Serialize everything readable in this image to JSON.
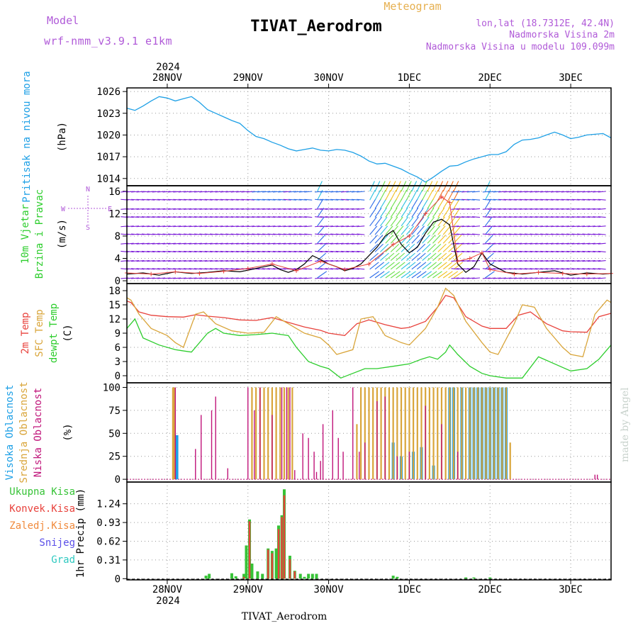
{
  "header": {
    "model_label": "Model",
    "model_name": "wrf-nmm_v3.9.1 e1km",
    "title": "TIVAT_Aerodrom",
    "subtitle": "Meteogram",
    "lonlat": "lon,lat (18.7312E, 42.4N)",
    "elevation": "Nadmorska Visina 2m",
    "model_elevation": "Nadmorska Visina u modelu 109.099m",
    "footer_title": "TIVAT_Aerodrom",
    "watermark": "made by Angel",
    "year": "2024"
  },
  "colors": {
    "pressure": "#1ea0e6",
    "temp2m": "#e8423c",
    "sfc_temp": "#d9a53a",
    "dewpt": "#2ccd2c",
    "high_cloud": "#1ea0e6",
    "mid_cloud": "#d9a53a",
    "low_cloud": "#c0157a",
    "precip_total": "#36c336",
    "precip_conv": "#e8423c",
    "frozen": "#f08a3c",
    "snow": "#5a4ee8",
    "hail": "#2ec9c0",
    "title_purple": "#b05ad8",
    "meteogram_orange": "#e6b050"
  },
  "x_axis": {
    "start_day": 27.5,
    "end_day": 33.5,
    "ticks": [
      28,
      29,
      30,
      31,
      32,
      33
    ],
    "tick_labels": [
      "28NOV",
      "29NOV",
      "30NOV",
      "1DEC",
      "2DEC",
      "3DEC"
    ]
  },
  "chart_data": [
    {
      "type": "line",
      "panel": "pressure",
      "ylabel": "Pritisak na nivou mora",
      "units": "(hPa)",
      "ylim": [
        1013,
        1026.5
      ],
      "yticks": [
        1014,
        1017,
        1020,
        1023,
        1026
      ],
      "grid": true,
      "series": [
        {
          "name": "pressure",
          "x": [
            27.5,
            27.6,
            27.7,
            27.8,
            27.9,
            28.0,
            28.1,
            28.2,
            28.3,
            28.4,
            28.5,
            28.6,
            28.7,
            28.8,
            28.9,
            29.0,
            29.1,
            29.2,
            29.3,
            29.4,
            29.5,
            29.6,
            29.7,
            29.8,
            29.9,
            30.0,
            30.1,
            30.2,
            30.3,
            30.4,
            30.5,
            30.6,
            30.7,
            30.8,
            30.9,
            31.0,
            31.1,
            31.2,
            31.3,
            31.4,
            31.5,
            31.6,
            31.7,
            31.8,
            31.9,
            32.0,
            32.1,
            32.2,
            32.3,
            32.4,
            32.5,
            32.6,
            32.7,
            32.8,
            32.9,
            33.0,
            33.1,
            33.2,
            33.3,
            33.4,
            33.5
          ],
          "values": [
            1023.7,
            1023.4,
            1024.0,
            1024.7,
            1025.3,
            1025.1,
            1024.7,
            1025.0,
            1025.3,
            1024.5,
            1023.5,
            1023.0,
            1022.5,
            1022.0,
            1021.6,
            1020.6,
            1019.8,
            1019.5,
            1019.0,
            1018.6,
            1018.1,
            1017.8,
            1018.0,
            1018.2,
            1017.9,
            1017.8,
            1018.0,
            1017.9,
            1017.6,
            1017.1,
            1016.4,
            1016.0,
            1016.1,
            1015.7,
            1015.3,
            1014.7,
            1014.2,
            1013.5,
            1014.2,
            1015.0,
            1015.7,
            1015.8,
            1016.3,
            1016.7,
            1017.0,
            1017.3,
            1017.3,
            1017.7,
            1018.7,
            1019.3,
            1019.4,
            1019.6,
            1020.0,
            1020.4,
            1020.0,
            1019.5,
            1019.7,
            1020.0,
            1020.1,
            1020.2,
            1019.6
          ]
        }
      ]
    },
    {
      "type": "line",
      "panel": "wind",
      "ylabel": "10m Vjetar",
      "ylabel2": "Brzina i Pravac",
      "units": "(m/s)",
      "ylim": [
        -0.5,
        17
      ],
      "yticks": [
        0,
        4,
        8,
        12,
        16
      ],
      "grid": true,
      "compass": [
        "N",
        "S",
        "W",
        "E"
      ],
      "series": [
        {
          "name": "wind_speed",
          "x": [
            27.5,
            27.7,
            27.9,
            28.1,
            28.3,
            28.5,
            28.7,
            28.9,
            29.0,
            29.1,
            29.2,
            29.3,
            29.4,
            29.5,
            29.6,
            29.7,
            29.8,
            29.9,
            30.0,
            30.1,
            30.2,
            30.3,
            30.4,
            30.5,
            30.6,
            30.7,
            30.8,
            30.9,
            31.0,
            31.1,
            31.2,
            31.3,
            31.4,
            31.5,
            31.6,
            31.7,
            31.8,
            31.9,
            32.0,
            32.2,
            32.4,
            32.6,
            32.8,
            33.0,
            33.2,
            33.4,
            33.5
          ],
          "values": [
            1.2,
            1.4,
            1.0,
            1.6,
            1.3,
            1.5,
            1.8,
            1.6,
            1.9,
            2.2,
            2.5,
            2.8,
            2.0,
            1.5,
            2.0,
            3.0,
            4.5,
            3.8,
            3.0,
            2.5,
            1.8,
            2.2,
            3.0,
            4.5,
            6.0,
            8.0,
            9.0,
            6.5,
            5.0,
            6.0,
            8.5,
            10.5,
            11.0,
            10.0,
            3.0,
            1.5,
            2.5,
            5.0,
            3.0,
            1.5,
            1.2,
            1.5,
            1.8,
            1.0,
            1.4,
            1.2,
            1.3
          ]
        },
        {
          "name": "gust",
          "x": [
            27.5,
            27.8,
            28.1,
            28.4,
            28.7,
            29.0,
            29.3,
            29.6,
            29.9,
            30.2,
            30.5,
            30.8,
            31.0,
            31.2,
            31.4,
            31.5,
            31.6,
            31.75,
            31.9,
            32.0,
            32.3,
            32.6,
            32.9,
            33.2,
            33.5
          ],
          "values": [
            1.4,
            1.2,
            1.6,
            1.3,
            1.7,
            2.2,
            3.0,
            1.8,
            3.5,
            2.0,
            3.0,
            6.5,
            8.0,
            12.0,
            15.0,
            14.0,
            3.5,
            4.0,
            5.0,
            2.0,
            1.2,
            1.5,
            1.3,
            1.2,
            1.3
          ]
        }
      ]
    },
    {
      "type": "line",
      "panel": "temperature",
      "ylabels": [
        "2m Temp",
        "SFC Temp",
        "dewpt Temp"
      ],
      "units": "(C)",
      "ylim": [
        -1.5,
        19.5
      ],
      "yticks": [
        0,
        3,
        6,
        9,
        12,
        15,
        18
      ],
      "grid": true,
      "series": [
        {
          "name": "2m Temp",
          "x": [
            27.5,
            27.55,
            27.65,
            27.8,
            28.0,
            28.2,
            28.35,
            28.5,
            28.7,
            28.9,
            29.1,
            29.3,
            29.5,
            29.7,
            29.9,
            30.0,
            30.2,
            30.35,
            30.5,
            30.7,
            30.9,
            31.0,
            31.2,
            31.35,
            31.45,
            31.55,
            31.7,
            31.9,
            32.0,
            32.2,
            32.35,
            32.5,
            32.7,
            32.9,
            33.0,
            33.2,
            33.35,
            33.5
          ],
          "values": [
            15.8,
            15.5,
            13.5,
            12.8,
            12.5,
            12.4,
            12.9,
            12.6,
            12.3,
            11.8,
            11.7,
            12.3,
            11.3,
            10.3,
            9.6,
            9.0,
            8.5,
            11.0,
            11.8,
            10.8,
            10.0,
            10.2,
            11.5,
            14.5,
            17.0,
            16.5,
            12.5,
            10.5,
            10.0,
            10.0,
            12.8,
            13.5,
            11.0,
            9.5,
            9.3,
            9.2,
            12.5,
            13.2
          ]
        },
        {
          "name": "SFC Temp",
          "x": [
            27.5,
            27.55,
            27.65,
            27.8,
            28.0,
            28.1,
            28.2,
            28.35,
            28.45,
            28.6,
            28.8,
            29.0,
            29.2,
            29.35,
            29.5,
            29.7,
            29.9,
            30.0,
            30.1,
            30.3,
            30.4,
            30.55,
            30.7,
            30.9,
            31.0,
            31.2,
            31.35,
            31.45,
            31.55,
            31.7,
            31.9,
            32.0,
            32.1,
            32.3,
            32.4,
            32.55,
            32.7,
            32.9,
            33.0,
            33.15,
            33.3,
            33.45,
            33.5
          ],
          "values": [
            16.5,
            16.0,
            13.0,
            10.0,
            8.5,
            7.0,
            6.0,
            13.0,
            13.5,
            11.0,
            9.5,
            9.0,
            9.2,
            12.5,
            11.0,
            9.0,
            8.0,
            6.5,
            4.5,
            5.5,
            12.0,
            12.5,
            8.5,
            7.0,
            6.5,
            10.0,
            14.5,
            18.5,
            17.0,
            11.5,
            7.0,
            5.0,
            4.5,
            11.0,
            15.0,
            14.5,
            10.0,
            6.0,
            4.5,
            4.0,
            13.0,
            16.0,
            15.5
          ]
        },
        {
          "name": "dewpt Temp",
          "x": [
            27.5,
            27.6,
            27.7,
            27.9,
            28.1,
            28.3,
            28.5,
            28.6,
            28.7,
            28.9,
            29.1,
            29.3,
            29.5,
            29.6,
            29.75,
            29.9,
            30.0,
            30.15,
            30.3,
            30.45,
            30.6,
            30.8,
            31.0,
            31.15,
            31.25,
            31.35,
            31.45,
            31.5,
            31.6,
            31.75,
            31.9,
            32.0,
            32.2,
            32.4,
            32.6,
            32.8,
            33.0,
            33.2,
            33.35,
            33.5
          ],
          "values": [
            10.0,
            12.0,
            8.0,
            6.5,
            5.5,
            5.0,
            9.0,
            10.0,
            9.0,
            8.5,
            8.7,
            9.0,
            8.5,
            6.0,
            3.0,
            2.0,
            1.5,
            -0.5,
            0.5,
            1.5,
            1.5,
            2.0,
            2.5,
            3.5,
            4.0,
            3.5,
            5.0,
            6.5,
            4.5,
            2.0,
            0.5,
            0.0,
            -0.5,
            -0.5,
            4.0,
            2.5,
            1.0,
            1.5,
            3.5,
            6.5
          ]
        }
      ]
    },
    {
      "type": "bar",
      "panel": "clouds",
      "ylabels": [
        "Visoka Oblacnost",
        "Srednja Oblacnost",
        "Niska Oblacnost"
      ],
      "units": "(%)",
      "ylim": [
        -3,
        105
      ],
      "yticks": [
        0,
        25,
        50,
        75,
        100
      ],
      "grid": true,
      "series": [
        {
          "name": "Visoka Oblacnost",
          "x": [
            28.1,
            28.12,
            30.8,
            30.9,
            31.05,
            31.15,
            31.3,
            31.5,
            31.55,
            31.65,
            31.75,
            31.8,
            31.85,
            31.9,
            31.95,
            32.0,
            32.05,
            32.1,
            32.15,
            32.2
          ],
          "values": [
            48,
            48,
            40,
            25,
            30,
            35,
            15,
            100,
            100,
            100,
            100,
            100,
            100,
            100,
            100,
            100,
            100,
            100,
            100,
            100
          ]
        },
        {
          "name": "Srednja Oblacnost",
          "x": [
            28.07,
            28.09,
            29.05,
            29.1,
            29.15,
            29.2,
            29.25,
            29.3,
            29.35,
            29.4,
            29.45,
            29.5,
            29.55,
            30.35,
            30.4,
            30.45,
            30.5,
            30.55,
            30.6,
            30.65,
            30.7,
            30.75,
            30.8,
            30.85,
            30.9,
            30.95,
            31.0,
            31.05,
            31.1,
            31.15,
            31.2,
            31.25,
            31.3,
            31.35,
            31.4,
            31.45,
            31.5,
            31.55,
            31.6,
            31.65,
            31.7,
            31.75,
            31.8,
            31.85,
            31.9,
            31.95,
            32.0,
            32.05,
            32.1,
            32.15,
            32.2,
            32.25
          ],
          "values": [
            100,
            100,
            100,
            100,
            100,
            100,
            100,
            100,
            100,
            100,
            100,
            100,
            100,
            60,
            100,
            100,
            100,
            100,
            100,
            100,
            100,
            100,
            100,
            100,
            100,
            100,
            100,
            100,
            100,
            100,
            100,
            100,
            100,
            100,
            100,
            100,
            100,
            100,
            100,
            100,
            100,
            100,
            100,
            100,
            100,
            100,
            100,
            100,
            100,
            100,
            100,
            40
          ]
        },
        {
          "name": "Niska Oblacnost",
          "x": [
            28.1,
            28.35,
            28.42,
            28.55,
            28.6,
            28.75,
            29.0,
            29.08,
            29.15,
            29.3,
            29.42,
            29.48,
            29.52,
            29.58,
            29.68,
            29.75,
            29.82,
            29.85,
            29.9,
            29.93,
            30.05,
            30.12,
            30.18,
            30.3,
            30.38,
            30.45,
            30.6,
            30.7,
            30.85,
            31.0,
            31.2,
            31.4,
            31.6,
            33.3,
            33.33
          ],
          "values": [
            100,
            33,
            70,
            75,
            90,
            12,
            100,
            75,
            100,
            70,
            100,
            100,
            100,
            10,
            50,
            45,
            30,
            8,
            20,
            60,
            75,
            45,
            30,
            100,
            30,
            40,
            85,
            90,
            25,
            30,
            80,
            60,
            30,
            5,
            5
          ]
        }
      ]
    },
    {
      "type": "bar",
      "panel": "precip",
      "ylabels": [
        "Ukupna Kisa",
        "Konvek.Kisa",
        "Zaledj.Kisa",
        "Snijeg",
        "Grad"
      ],
      "units": "1hr Precip (mm)",
      "ylim": [
        -0.02,
        1.6
      ],
      "yticks": [
        0,
        0.31,
        0.62,
        0.93,
        1.24
      ],
      "grid": true,
      "series": [
        {
          "name": "Ukupna Kisa",
          "x": [
            28.48,
            28.52,
            28.8,
            28.85,
            28.95,
            28.98,
            29.02,
            29.05,
            29.12,
            29.18,
            29.25,
            29.3,
            29.35,
            29.38,
            29.42,
            29.45,
            29.52,
            29.58,
            29.65,
            29.7,
            29.75,
            29.8,
            29.85,
            30.8,
            30.85,
            31.7,
            31.8,
            32.0
          ],
          "values": [
            0.05,
            0.08,
            0.09,
            0.04,
            0.08,
            0.55,
            0.98,
            0.25,
            0.12,
            0.08,
            0.5,
            0.46,
            0.5,
            0.88,
            1.05,
            1.48,
            0.38,
            0.13,
            0.08,
            0.03,
            0.08,
            0.08,
            0.08,
            0.05,
            0.03,
            0.02,
            0.02,
            0.02
          ]
        },
        {
          "name": "Konvek.Kisa",
          "x": [
            28.95,
            29.02,
            29.25,
            29.3,
            29.38,
            29.42,
            29.45,
            29.52,
            29.58
          ],
          "values": [
            0.03,
            0.95,
            0.48,
            0.42,
            0.82,
            1.02,
            1.38,
            0.32,
            0.12
          ]
        }
      ]
    }
  ]
}
